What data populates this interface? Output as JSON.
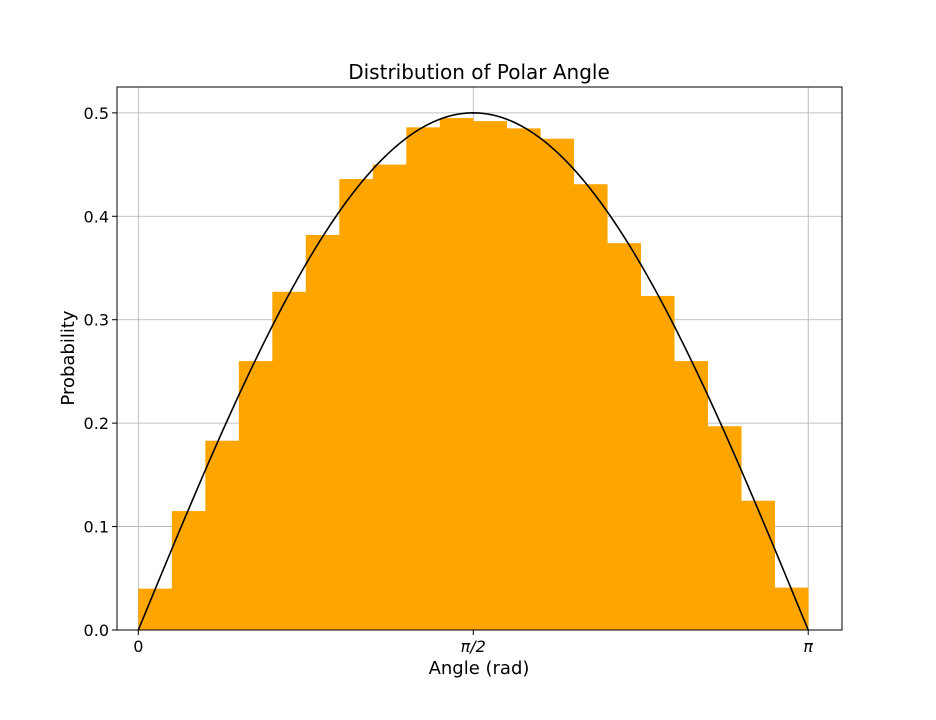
{
  "chart_data": {
    "type": "bar",
    "title": "Distribution of Polar Angle",
    "xlabel": "Angle (rad)",
    "ylabel": "Probability",
    "xlim": [
      -0.1,
      3.3
    ],
    "ylim": [
      0.0,
      0.525
    ],
    "grid": true,
    "xticks": [
      {
        "value": 0.0,
        "label": "0"
      },
      {
        "value": 1.5707963,
        "label": "π/2"
      },
      {
        "value": 3.1415927,
        "label": "π"
      }
    ],
    "yticks": [
      {
        "value": 0.0,
        "label": "0.0"
      },
      {
        "value": 0.1,
        "label": "0.1"
      },
      {
        "value": 0.2,
        "label": "0.2"
      },
      {
        "value": 0.3,
        "label": "0.3"
      },
      {
        "value": 0.4,
        "label": "0.4"
      },
      {
        "value": 0.5,
        "label": "0.5"
      }
    ],
    "bins": {
      "start": 0.0,
      "end": 3.1415927,
      "values": [
        0.04,
        0.115,
        0.183,
        0.26,
        0.327,
        0.382,
        0.436,
        0.45,
        0.486,
        0.495,
        0.492,
        0.485,
        0.475,
        0.431,
        0.374,
        0.323,
        0.26,
        0.197,
        0.125,
        0.041
      ],
      "color": "#FFA500"
    },
    "curve": {
      "function": "0.5*sin(x)",
      "x_range": [
        0.0,
        3.1415927
      ],
      "color": "#000000"
    }
  }
}
